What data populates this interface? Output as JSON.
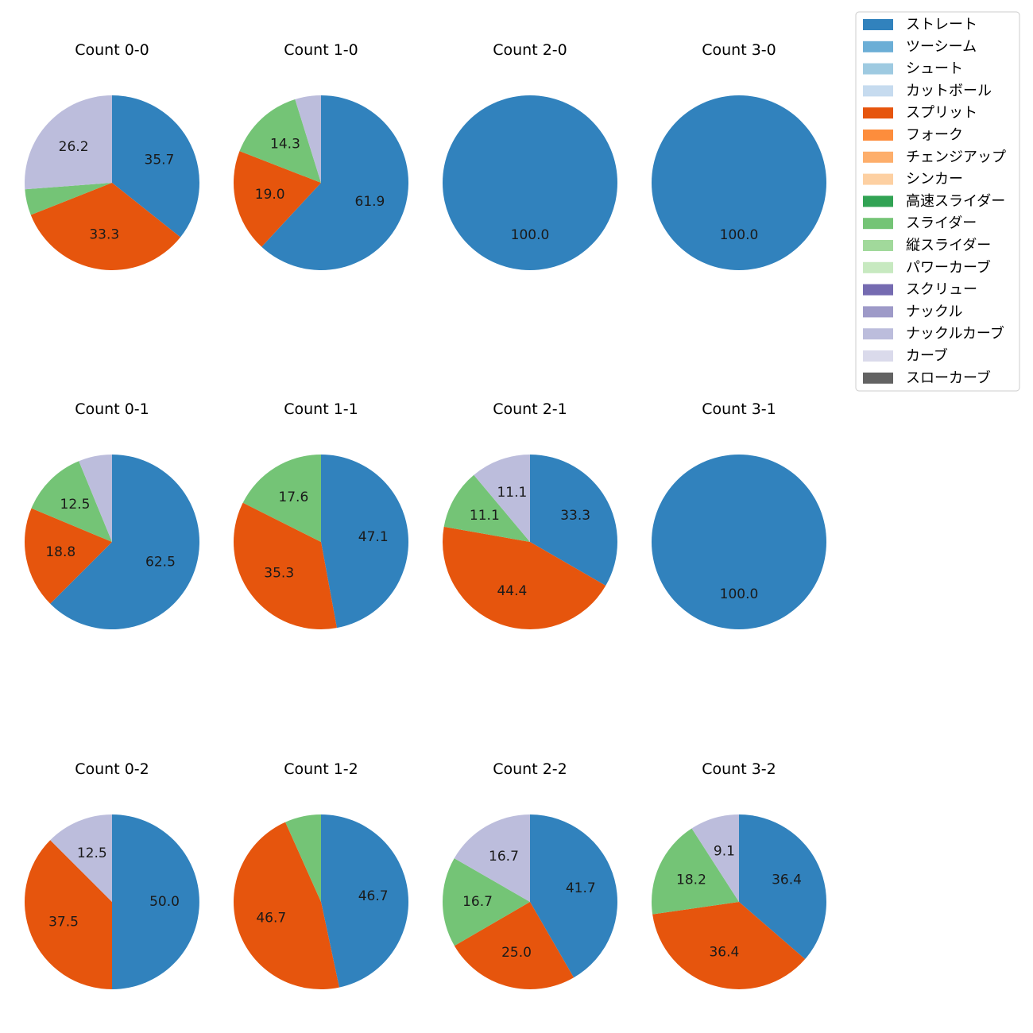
{
  "legend": [
    {
      "name": "ストレート",
      "color": "#3182bd"
    },
    {
      "name": "ツーシーム",
      "color": "#6baed6"
    },
    {
      "name": "シュート",
      "color": "#9ecae1"
    },
    {
      "name": "カットボール",
      "color": "#c6dbef"
    },
    {
      "name": "スプリット",
      "color": "#e6550d"
    },
    {
      "name": "フォーク",
      "color": "#fd8d3c"
    },
    {
      "name": "チェンジアップ",
      "color": "#fdae6b"
    },
    {
      "name": "シンカー",
      "color": "#fdd0a2"
    },
    {
      "name": "高速スライダー",
      "color": "#31a354"
    },
    {
      "name": "スライダー",
      "color": "#74c476"
    },
    {
      "name": "縦スライダー",
      "color": "#a1d99b"
    },
    {
      "name": "パワーカーブ",
      "color": "#c7e9c0"
    },
    {
      "name": "スクリュー",
      "color": "#756bb1"
    },
    {
      "name": "ナックル",
      "color": "#9e9ac8"
    },
    {
      "name": "ナックルカーブ",
      "color": "#bcbddc"
    },
    {
      "name": "カーブ",
      "color": "#dadaeb"
    },
    {
      "name": "スローカーブ",
      "color": "#636363"
    }
  ],
  "chart_data": [
    {
      "type": "pie",
      "title": "Count 0-0",
      "slices": [
        {
          "label": "ストレート",
          "value": 35.7,
          "text": "35.7"
        },
        {
          "label": "スプリット",
          "value": 33.3,
          "text": "33.3"
        },
        {
          "label": "スライダー",
          "value": 4.8,
          "text": ""
        },
        {
          "label": "ナックルカーブ",
          "value": 26.2,
          "text": "26.2"
        }
      ]
    },
    {
      "type": "pie",
      "title": "Count 1-0",
      "slices": [
        {
          "label": "ストレート",
          "value": 61.9,
          "text": "61.9"
        },
        {
          "label": "スプリット",
          "value": 19.0,
          "text": "19.0"
        },
        {
          "label": "スライダー",
          "value": 14.3,
          "text": "14.3"
        },
        {
          "label": "ナックルカーブ",
          "value": 4.8,
          "text": ""
        }
      ]
    },
    {
      "type": "pie",
      "title": "Count 2-0",
      "slices": [
        {
          "label": "ストレート",
          "value": 100.0,
          "text": "100.0"
        }
      ]
    },
    {
      "type": "pie",
      "title": "Count 3-0",
      "slices": [
        {
          "label": "ストレート",
          "value": 100.0,
          "text": "100.0"
        }
      ]
    },
    {
      "type": "pie",
      "title": "Count 0-1",
      "slices": [
        {
          "label": "ストレート",
          "value": 62.5,
          "text": "62.5"
        },
        {
          "label": "スプリット",
          "value": 18.8,
          "text": "18.8"
        },
        {
          "label": "スライダー",
          "value": 12.5,
          "text": "12.5"
        },
        {
          "label": "ナックルカーブ",
          "value": 6.2,
          "text": ""
        }
      ]
    },
    {
      "type": "pie",
      "title": "Count 1-1",
      "slices": [
        {
          "label": "ストレート",
          "value": 47.1,
          "text": "47.1"
        },
        {
          "label": "スプリット",
          "value": 35.3,
          "text": "35.3"
        },
        {
          "label": "スライダー",
          "value": 17.6,
          "text": "17.6"
        }
      ]
    },
    {
      "type": "pie",
      "title": "Count 2-1",
      "slices": [
        {
          "label": "ストレート",
          "value": 33.3,
          "text": "33.3"
        },
        {
          "label": "スプリット",
          "value": 44.4,
          "text": "44.4"
        },
        {
          "label": "スライダー",
          "value": 11.1,
          "text": "11.1"
        },
        {
          "label": "ナックルカーブ",
          "value": 11.1,
          "text": "11.1"
        }
      ]
    },
    {
      "type": "pie",
      "title": "Count 3-1",
      "slices": [
        {
          "label": "ストレート",
          "value": 100.0,
          "text": "100.0"
        }
      ]
    },
    {
      "type": "pie",
      "title": "Count 0-2",
      "slices": [
        {
          "label": "ストレート",
          "value": 50.0,
          "text": "50.0"
        },
        {
          "label": "スプリット",
          "value": 37.5,
          "text": "37.5"
        },
        {
          "label": "ナックルカーブ",
          "value": 12.5,
          "text": "12.5"
        }
      ]
    },
    {
      "type": "pie",
      "title": "Count 1-2",
      "slices": [
        {
          "label": "ストレート",
          "value": 46.7,
          "text": "46.7"
        },
        {
          "label": "スプリット",
          "value": 46.7,
          "text": "46.7"
        },
        {
          "label": "スライダー",
          "value": 6.7,
          "text": ""
        }
      ]
    },
    {
      "type": "pie",
      "title": "Count 2-2",
      "slices": [
        {
          "label": "ストレート",
          "value": 41.7,
          "text": "41.7"
        },
        {
          "label": "スプリット",
          "value": 25.0,
          "text": "25.0"
        },
        {
          "label": "スライダー",
          "value": 16.7,
          "text": "16.7"
        },
        {
          "label": "ナックルカーブ",
          "value": 16.7,
          "text": "16.7"
        }
      ]
    },
    {
      "type": "pie",
      "title": "Count 3-2",
      "slices": [
        {
          "label": "ストレート",
          "value": 36.4,
          "text": "36.4"
        },
        {
          "label": "スプリット",
          "value": 36.4,
          "text": "36.4"
        },
        {
          "label": "スライダー",
          "value": 18.2,
          "text": "18.2"
        },
        {
          "label": "ナックルカーブ",
          "value": 9.1,
          "text": "9.1"
        }
      ]
    }
  ]
}
